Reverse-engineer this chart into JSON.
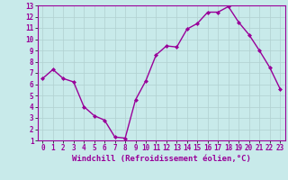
{
  "x": [
    0,
    1,
    2,
    3,
    4,
    5,
    6,
    7,
    8,
    9,
    10,
    11,
    12,
    13,
    14,
    15,
    16,
    17,
    18,
    19,
    20,
    21,
    22,
    23
  ],
  "y": [
    6.5,
    7.3,
    6.5,
    6.2,
    4.0,
    3.2,
    2.8,
    1.3,
    1.2,
    4.6,
    6.3,
    8.6,
    9.4,
    9.3,
    10.9,
    11.4,
    12.4,
    12.4,
    12.9,
    11.5,
    10.4,
    9.0,
    7.5,
    5.6
  ],
  "line_color": "#990099",
  "marker": "D",
  "markersize": 2,
  "linewidth": 1.0,
  "xlabel": "Windchill (Refroidissement éolien,°C)",
  "xlabel_fontsize": 6.5,
  "bg_color": "#c8eaea",
  "grid_color": "#b0d0d0",
  "tick_color": "#990099",
  "label_color": "#990099",
  "xlim": [
    -0.5,
    23.5
  ],
  "ylim": [
    1,
    13
  ],
  "yticks": [
    1,
    2,
    3,
    4,
    5,
    6,
    7,
    8,
    9,
    10,
    11,
    12,
    13
  ],
  "xticks": [
    0,
    1,
    2,
    3,
    4,
    5,
    6,
    7,
    8,
    9,
    10,
    11,
    12,
    13,
    14,
    15,
    16,
    17,
    18,
    19,
    20,
    21,
    22,
    23
  ],
  "tick_fontsize": 5.5,
  "ylabel_fontsize": 5.5
}
